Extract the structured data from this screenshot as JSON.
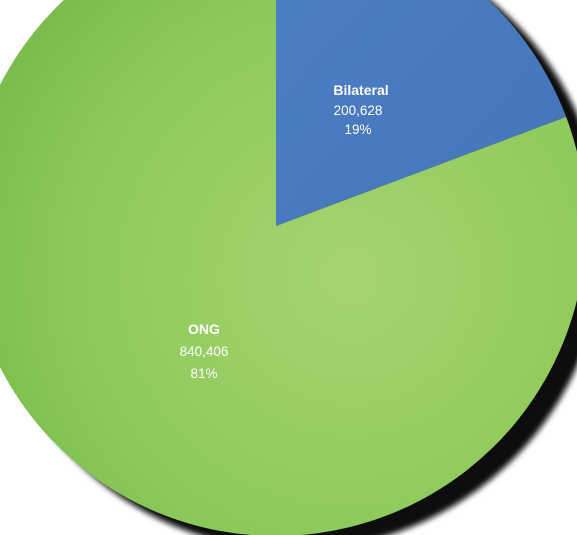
{
  "chart_data": {
    "type": "pie",
    "title": "",
    "slices": [
      {
        "label": "Bilateral",
        "value": 200628,
        "value_label": "200,628",
        "percent_label": "19%",
        "color": "#4a7cc2"
      },
      {
        "label": "ONG",
        "value": 840406,
        "value_label": "840,406",
        "percent_label": "81%",
        "color": "#8ac858"
      }
    ],
    "legend": "none",
    "style": "3d-tilted"
  }
}
